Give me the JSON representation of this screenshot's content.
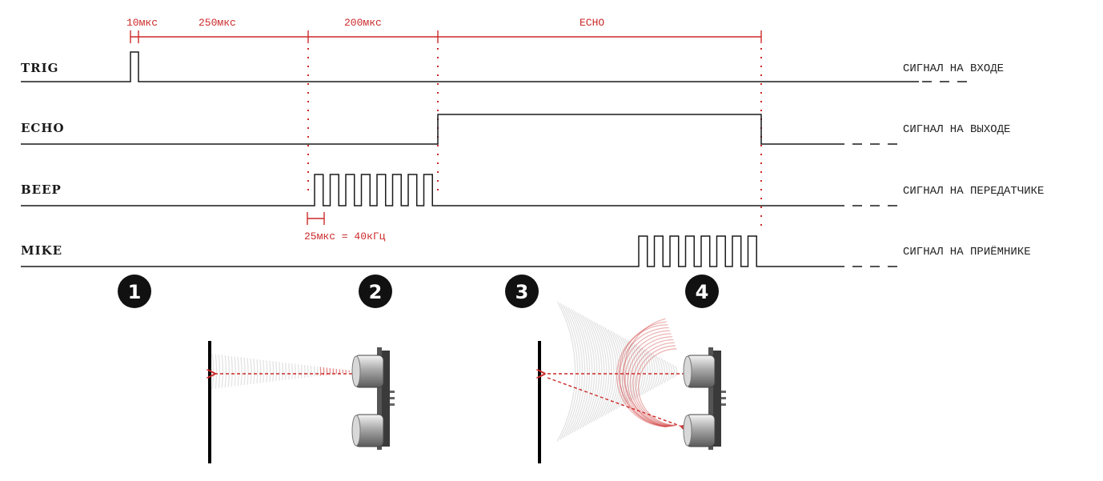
{
  "colors": {
    "accent": "#cc2a2a",
    "signal": "#1a1a1a",
    "badge": "#111111",
    "wall": "#111111"
  },
  "timing": {
    "trig_pulse": "10мкс",
    "delay": "250мкс",
    "burst": "200мкс",
    "echo": "ECHO",
    "period": "25мкс = 40кГц"
  },
  "signals": [
    {
      "id": "trig",
      "name": "TRIG",
      "desc": "СИГНАЛ НА ВХОДЕ"
    },
    {
      "id": "echo",
      "name": "ECHO",
      "desc": "СИГНАЛ НА ВЫХОДЕ"
    },
    {
      "id": "beep",
      "name": "BEEP",
      "desc": "СИГНАЛ НА ПЕРЕДАТЧИКЕ"
    },
    {
      "id": "mike",
      "name": "MIKE",
      "desc": "СИГНАЛ НА ПРИЁМНИКЕ"
    }
  ],
  "steps": [
    "1",
    "2",
    "3",
    "4"
  ],
  "icons": {
    "emit": "ultrasonic-sensor-emitting-icon",
    "receive": "ultrasonic-sensor-receiving-icon"
  }
}
